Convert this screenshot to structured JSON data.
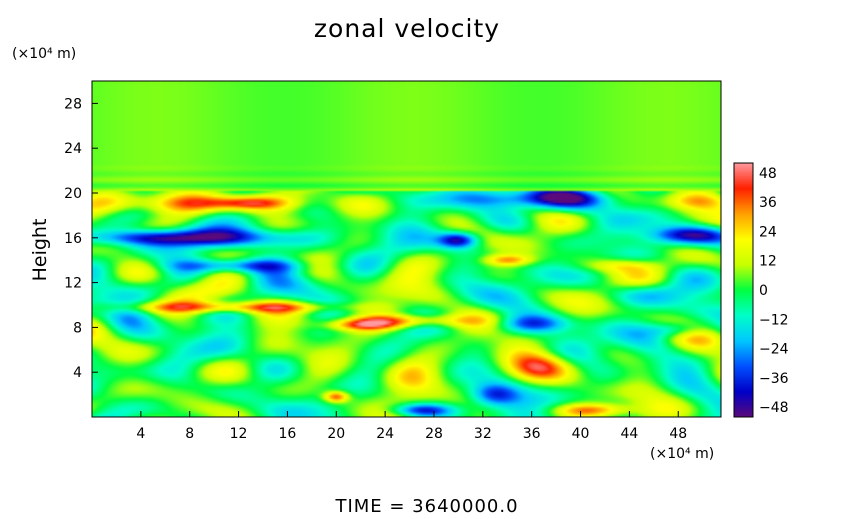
{
  "chart_data": {
    "type": "heatmap",
    "title": "zonal velocity",
    "xlabel": "",
    "ylabel": "Height",
    "x_unit_label": "(×10⁴ m)",
    "y_unit_label": "(×10⁴ m)",
    "footer": "TIME  =  3640000.0",
    "xlim": [
      0,
      51.5
    ],
    "ylim": [
      0,
      30
    ],
    "x_ticks": [
      4,
      8,
      12,
      16,
      20,
      24,
      28,
      32,
      36,
      40,
      44,
      48
    ],
    "y_ticks": [
      4,
      8,
      12,
      16,
      20,
      24,
      28
    ],
    "colorbar": {
      "range": [
        -52,
        52
      ],
      "ticks": [
        48,
        36,
        24,
        12,
        0,
        -12,
        -24,
        -36,
        -48
      ],
      "tick_labels": [
        "48",
        "36",
        "24",
        "12",
        "0",
        "−12",
        "−24",
        "−36",
        "−48"
      ]
    },
    "colorscale": [
      "#5a0a7a",
      "#0000c8",
      "#0050ff",
      "#00c8ff",
      "#00ffc8",
      "#00ff40",
      "#c8ff00",
      "#ffff00",
      "#ffa000",
      "#ff2000",
      "#ff9aa0"
    ],
    "field_features": [
      {
        "x": 10,
        "y": 19.1,
        "sx": 8,
        "sy": 0.9,
        "v": 35
      },
      {
        "x": 12.5,
        "y": 19.1,
        "sx": 3,
        "sy": 0.5,
        "v": 20
      },
      {
        "x": 50,
        "y": 19.3,
        "sx": 3,
        "sy": 0.8,
        "v": 30
      },
      {
        "x": 36,
        "y": 19.5,
        "sx": 7,
        "sy": 0.9,
        "v": -42
      },
      {
        "x": 5,
        "y": 16,
        "sx": 5,
        "sy": 0.7,
        "v": -42
      },
      {
        "x": 13,
        "y": 16,
        "sx": 5,
        "sy": 0.9,
        "v": -38
      },
      {
        "x": 30,
        "y": 15.8,
        "sx": 1.6,
        "sy": 0.7,
        "v": -48
      },
      {
        "x": 49,
        "y": 16.2,
        "sx": 3.5,
        "sy": 0.8,
        "v": -42
      },
      {
        "x": 12,
        "y": 13.5,
        "sx": 5,
        "sy": 0.6,
        "v": -32
      },
      {
        "x": 34,
        "y": 14,
        "sx": 2,
        "sy": 0.5,
        "v": 30
      },
      {
        "x": 12,
        "y": 9.8,
        "sx": 9,
        "sy": 0.5,
        "v": 34
      },
      {
        "x": 26,
        "y": 8.6,
        "sx": 5,
        "sy": 0.6,
        "v": 35
      },
      {
        "x": 22,
        "y": 8.2,
        "sx": 3,
        "sy": 0.5,
        "v": 30
      },
      {
        "x": 36,
        "y": 8.3,
        "sx": 3,
        "sy": 0.8,
        "v": -30
      },
      {
        "x": 48,
        "y": 7.8,
        "sx": 2.5,
        "sy": 0.7,
        "v": -25
      },
      {
        "x": 26,
        "y": 4,
        "sx": 2.5,
        "sy": 2,
        "v": 22
      },
      {
        "x": 36.5,
        "y": 4.5,
        "sx": 2.5,
        "sy": 1.2,
        "v": 30
      },
      {
        "x": 33,
        "y": 2,
        "sx": 2,
        "sy": 1,
        "v": -36
      },
      {
        "x": 27,
        "y": 0.6,
        "sx": 2.5,
        "sy": 0.6,
        "v": -42
      },
      {
        "x": 41,
        "y": 0.6,
        "sx": 3,
        "sy": 0.6,
        "v": 35
      },
      {
        "x": 45,
        "y": 11,
        "sx": 3,
        "sy": 1,
        "v": -18
      },
      {
        "x": 3,
        "y": 8.8,
        "sx": 2,
        "sy": 1,
        "v": -18
      },
      {
        "x": 43,
        "y": 13.5,
        "sx": 3,
        "sy": 0.6,
        "v": 18
      },
      {
        "x": 20,
        "y": 1.8,
        "sx": 1,
        "sy": 0.5,
        "v": 40
      }
    ]
  }
}
